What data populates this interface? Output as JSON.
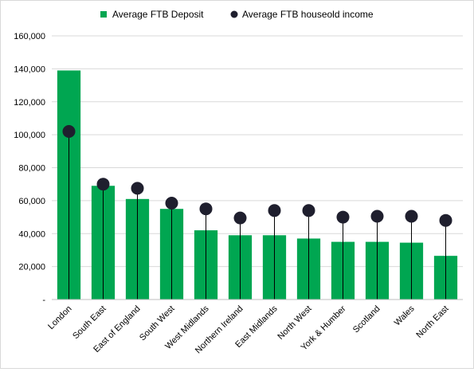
{
  "chart_data": {
    "type": "bar",
    "title": "",
    "xlabel": "",
    "ylabel": "",
    "ylim": [
      0,
      160000
    ],
    "yticks": [
      0,
      20000,
      40000,
      60000,
      80000,
      100000,
      120000,
      140000,
      160000
    ],
    "ytick_labels": [
      "-",
      "20,000",
      "40,000",
      "60,000",
      "80,000",
      "100,000",
      "120,000",
      "140,000",
      "160,000"
    ],
    "grid": true,
    "legend_position": "top",
    "categories": [
      "London",
      "South East",
      "East of England",
      "South West",
      "West Midlands",
      "Northern Ireland",
      "East Midlands",
      "North West",
      "York & Humber",
      "Scotland",
      "Wales",
      "North East"
    ],
    "series": [
      {
        "name": "Average FTB  Deposit",
        "kind": "bar",
        "color": "#00a651",
        "values": [
          139000,
          69000,
          61000,
          55000,
          42000,
          39000,
          39000,
          37000,
          35000,
          35000,
          34500,
          26500
        ]
      },
      {
        "name": "Average FTB houseold income",
        "kind": "lollipop",
        "color": "#1f1f2e",
        "values": [
          102000,
          70000,
          67500,
          58500,
          55000,
          49500,
          54000,
          54000,
          50000,
          50500,
          50500,
          48000
        ]
      }
    ]
  }
}
